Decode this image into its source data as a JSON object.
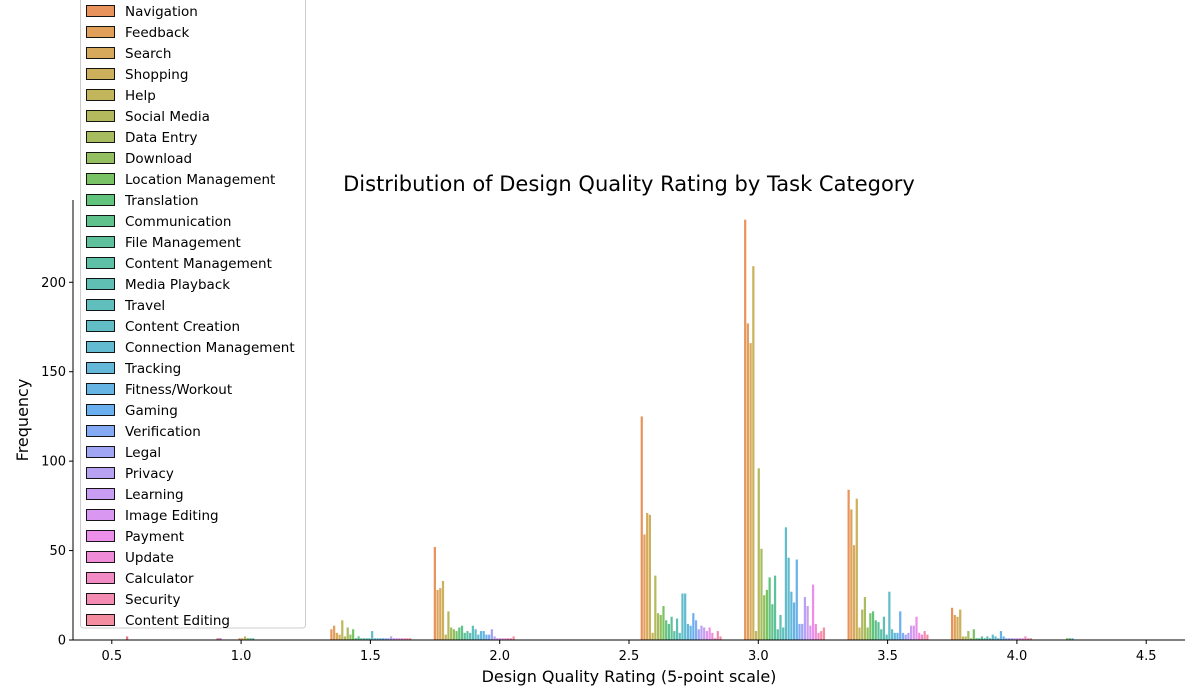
{
  "chart_data": {
    "type": "bar",
    "title": "Distribution of Design Quality Rating by Task Category",
    "xlabel": "Design Quality Rating (5-point scale)",
    "ylabel": "Frequency",
    "xlim": [
      0.35,
      4.65
    ],
    "ylim": [
      0,
      246
    ],
    "xticks": [
      "0.5",
      "1.0",
      "1.5",
      "2.0",
      "2.5",
      "3.0",
      "3.5",
      "4.0",
      "4.5"
    ],
    "yticks": [
      "0",
      "50",
      "100",
      "150",
      "200"
    ],
    "grid": false,
    "legend_position": "upper-left",
    "legend": [
      {
        "label": "Navigation",
        "color": "#e8935c"
      },
      {
        "label": "Feedback",
        "color": "#e0a05a"
      },
      {
        "label": "Search",
        "color": "#d7a95a"
      },
      {
        "label": "Shopping",
        "color": "#cdb05b"
      },
      {
        "label": "Help",
        "color": "#c2b55c"
      },
      {
        "label": "Social Media",
        "color": "#b5b95e"
      },
      {
        "label": "Data Entry",
        "color": "#a6bc5f"
      },
      {
        "label": "Download",
        "color": "#93bf60"
      },
      {
        "label": "Location Management",
        "color": "#7ac266"
      },
      {
        "label": "Translation",
        "color": "#62c37c"
      },
      {
        "label": "Communication",
        "color": "#5fc28d"
      },
      {
        "label": "File Management",
        "color": "#5fc19b"
      },
      {
        "label": "Content Management",
        "color": "#5fc0a8"
      },
      {
        "label": "Media Playback",
        "color": "#60bfb3"
      },
      {
        "label": "Travel",
        "color": "#60bfbd"
      },
      {
        "label": "Content Creation",
        "color": "#61bdc6"
      },
      {
        "label": "Connection Management",
        "color": "#62bbd0"
      },
      {
        "label": "Tracking",
        "color": "#63b8da"
      },
      {
        "label": "Fitness/Workout",
        "color": "#66b4e4"
      },
      {
        "label": "Gaming",
        "color": "#6bb0ee"
      },
      {
        "label": "Verification",
        "color": "#84aaf3"
      },
      {
        "label": "Legal",
        "color": "#a0a6f3"
      },
      {
        "label": "Privacy",
        "color": "#b6a1f3"
      },
      {
        "label": "Learning",
        "color": "#c99df3"
      },
      {
        "label": "Image Editing",
        "color": "#da97f1"
      },
      {
        "label": "Payment",
        "color": "#eb8fea"
      },
      {
        "label": "Update",
        "color": "#f08bd7"
      },
      {
        "label": "Calculator",
        "color": "#f28ac4"
      },
      {
        "label": "Security",
        "color": "#f38bb2"
      },
      {
        "label": "Content Editing",
        "color": "#f38d9f"
      }
    ],
    "bar_width": 0.0105,
    "clusters": [
      {
        "start": 0.555,
        "values": [
          2
        ],
        "colors": [
          "#e8767e"
        ]
      },
      {
        "start": 0.905,
        "values": [
          1,
          1
        ],
        "colors": [
          "#e8767e",
          "#c56ee6"
        ]
      },
      {
        "start": 0.99,
        "values": [
          1,
          1,
          2,
          1,
          1,
          1
        ],
        "colors": [
          "#e8935c",
          "#d7a95a",
          "#b5b95e",
          "#7ac266",
          "#5fc28d",
          "#5fc0a8"
        ]
      },
      {
        "start": 1.345,
        "values": [
          6,
          8,
          4,
          3,
          11,
          2,
          7,
          3,
          6,
          1,
          2,
          1,
          1,
          1,
          1,
          5,
          1,
          1,
          1,
          1,
          1,
          1,
          2,
          1,
          1,
          1,
          1,
          1,
          1,
          1
        ],
        "colors": "legend"
      },
      {
        "start": 1.745,
        "values": [
          52,
          28,
          29,
          33,
          3,
          16,
          7,
          6,
          5,
          7,
          8,
          4,
          5,
          4,
          8,
          6,
          3,
          5,
          5,
          3,
          3,
          6,
          2,
          1,
          1,
          1,
          1,
          1,
          1,
          2
        ],
        "colors": "legend"
      },
      {
        "start": 2.545,
        "values": [
          125,
          59,
          71,
          70,
          4,
          36,
          15,
          14,
          19,
          11,
          9,
          13,
          5,
          12,
          4,
          26,
          26,
          9,
          8,
          15,
          11,
          6,
          8,
          7,
          5,
          7,
          4,
          1,
          5,
          2
        ],
        "colors": "legend"
      },
      {
        "start": 2.945,
        "values": [
          235,
          177,
          166,
          209,
          5,
          96,
          51,
          25,
          28,
          35,
          20,
          36,
          6,
          14,
          7,
          63,
          46,
          27,
          21,
          45,
          9,
          9,
          24,
          19,
          8,
          31,
          9,
          4,
          5,
          7
        ],
        "colors": "legend"
      },
      {
        "start": 3.345,
        "values": [
          84,
          73,
          53,
          79,
          7,
          17,
          24,
          7,
          15,
          16,
          11,
          10,
          6,
          13,
          3,
          27,
          6,
          4,
          4,
          16,
          4,
          3,
          4,
          8,
          8,
          13,
          4,
          3,
          5,
          3
        ],
        "colors": "legend"
      },
      {
        "start": 3.745,
        "values": [
          18,
          14,
          13,
          17,
          2,
          2,
          5,
          1,
          6,
          1,
          1,
          2,
          1,
          2,
          1,
          3,
          2,
          1,
          5,
          2,
          1,
          1,
          1,
          1,
          1,
          1,
          1,
          2,
          1,
          1
        ],
        "colors": "legend"
      },
      {
        "start": 4.19,
        "values": [
          1,
          1,
          1
        ],
        "colors": [
          "#93bf60",
          "#5fc28d",
          "#63b8da"
        ]
      }
    ]
  }
}
